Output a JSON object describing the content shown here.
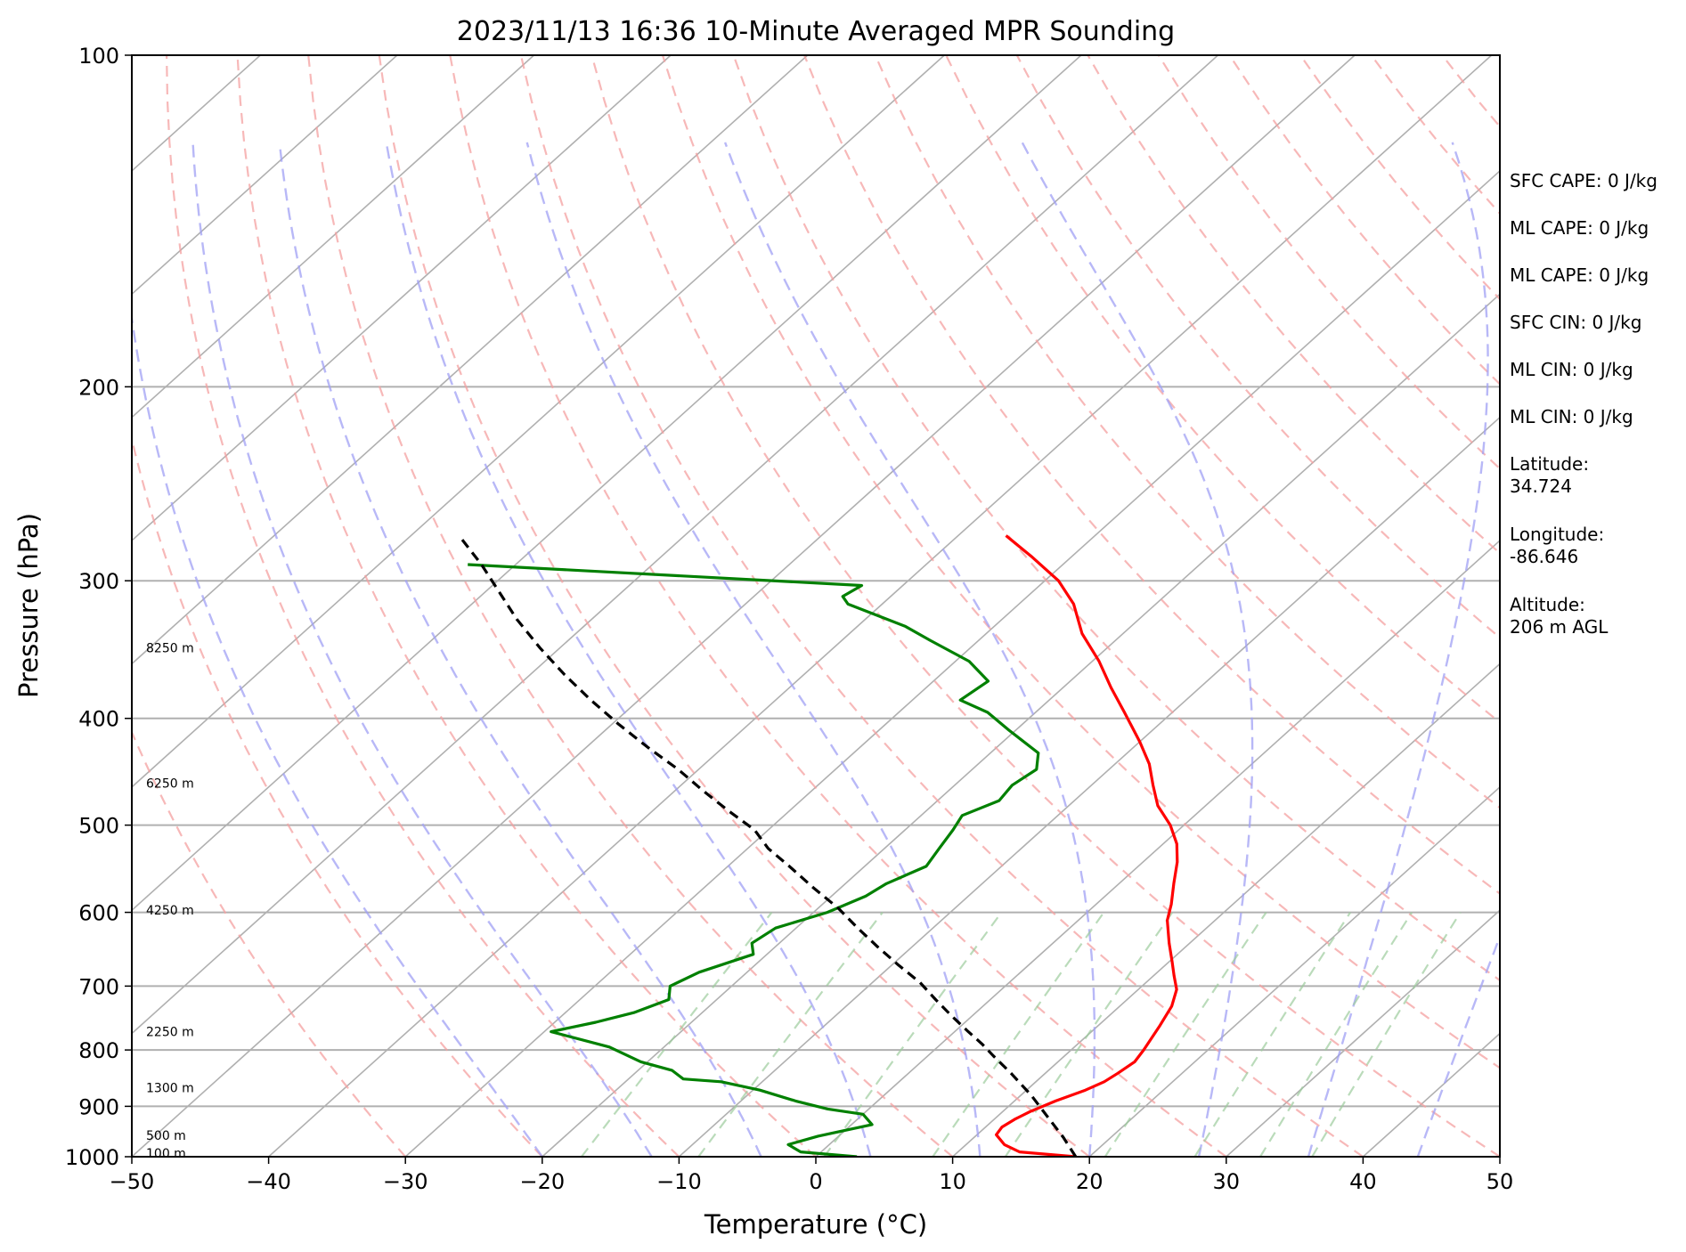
{
  "chart_data": {
    "type": "line",
    "title": "2023/11/13 16:36 10-Minute Averaged MPR Sounding",
    "xlabel": "Temperature (°C)",
    "ylabel": "Pressure (hPa)",
    "xlim": [
      -50,
      50
    ],
    "ylim": [
      1000,
      100
    ],
    "y_scale": "log",
    "x_ticks": [
      -50,
      -40,
      -30,
      -20,
      -10,
      0,
      10,
      20,
      30,
      40,
      50
    ],
    "y_ticks": [
      100,
      200,
      300,
      400,
      500,
      600,
      700,
      800,
      900,
      1000
    ],
    "grid": true,
    "skew": true,
    "series": [
      {
        "role": "temperature",
        "color": "#ff0000",
        "points": [
          [
            19.0,
            1000
          ],
          [
            14.5,
            990
          ],
          [
            12.8,
            975
          ],
          [
            11.4,
            955
          ],
          [
            11.2,
            940
          ],
          [
            11.5,
            925
          ],
          [
            12.0,
            910
          ],
          [
            13.0,
            890
          ],
          [
            14.3,
            870
          ],
          [
            15.0,
            855
          ],
          [
            15.3,
            840
          ],
          [
            15.6,
            820
          ],
          [
            15.3,
            800
          ],
          [
            14.5,
            760
          ],
          [
            13.8,
            730
          ],
          [
            12.8,
            705
          ],
          [
            11.5,
            685
          ],
          [
            10.2,
            665
          ],
          [
            8.5,
            640
          ],
          [
            6.5,
            610
          ],
          [
            5.5,
            590
          ],
          [
            4.0,
            565
          ],
          [
            2.5,
            540
          ],
          [
            1.0,
            520
          ],
          [
            -1.0,
            500
          ],
          [
            -3.5,
            480
          ],
          [
            -5.5,
            460
          ],
          [
            -7.5,
            440
          ],
          [
            -10.0,
            420
          ],
          [
            -13.5,
            395
          ],
          [
            -16.5,
            375
          ],
          [
            -19.5,
            355
          ],
          [
            -23.0,
            335
          ],
          [
            -26.0,
            315
          ],
          [
            -29.0,
            300
          ],
          [
            -33.0,
            285
          ],
          [
            -36.5,
            273
          ]
        ]
      },
      {
        "role": "dewpoint",
        "color": "#008000",
        "points": [
          [
            3.0,
            1000
          ],
          [
            -1.5,
            990
          ],
          [
            -3.0,
            975
          ],
          [
            -1.5,
            958
          ],
          [
            1.5,
            935
          ],
          [
            0.0,
            915
          ],
          [
            -3.0,
            905
          ],
          [
            -6.0,
            890
          ],
          [
            -9.5,
            870
          ],
          [
            -13.0,
            855
          ],
          [
            -16.0,
            850
          ],
          [
            -17.5,
            835
          ],
          [
            -20.5,
            820
          ],
          [
            -24.0,
            795
          ],
          [
            -29.5,
            770
          ],
          [
            -27.0,
            755
          ],
          [
            -25.0,
            740
          ],
          [
            -23.5,
            720
          ],
          [
            -24.5,
            700
          ],
          [
            -23.5,
            680
          ],
          [
            -21.0,
            655
          ],
          [
            -22.0,
            640
          ],
          [
            -21.5,
            620
          ],
          [
            -19.0,
            600
          ],
          [
            -17.5,
            580
          ],
          [
            -17.0,
            565
          ],
          [
            -15.5,
            545
          ],
          [
            -16.0,
            525
          ],
          [
            -16.5,
            505
          ],
          [
            -17.0,
            490
          ],
          [
            -15.5,
            475
          ],
          [
            -15.8,
            460
          ],
          [
            -15.3,
            445
          ],
          [
            -16.5,
            430
          ],
          [
            -20.5,
            410
          ],
          [
            -23.5,
            395
          ],
          [
            -26.5,
            385
          ],
          [
            -26.0,
            370
          ],
          [
            -29.0,
            355
          ],
          [
            -33.5,
            340
          ],
          [
            -36.5,
            330
          ],
          [
            -42.5,
            315
          ],
          [
            -43.5,
            310
          ],
          [
            -43.0,
            303
          ],
          [
            -73.5,
            290
          ]
        ]
      },
      {
        "role": "parcel",
        "color": "#000000",
        "dashed": true,
        "points": [
          [
            19.0,
            1000
          ],
          [
            16.5,
            960
          ],
          [
            13.7,
            920
          ],
          [
            10.8,
            880
          ],
          [
            7.5,
            840
          ],
          [
            4.8,
            810
          ],
          [
            3.0,
            790
          ],
          [
            1.0,
            770
          ],
          [
            -1.5,
            745
          ],
          [
            -4.0,
            720
          ],
          [
            -6.5,
            695
          ],
          [
            -9.5,
            670
          ],
          [
            -12.5,
            645
          ],
          [
            -15.5,
            620
          ],
          [
            -18.5,
            595
          ],
          [
            -22.0,
            570
          ],
          [
            -25.5,
            545
          ],
          [
            -28.5,
            525
          ],
          [
            -31.0,
            505
          ],
          [
            -34.5,
            485
          ],
          [
            -38.0,
            465
          ],
          [
            -41.5,
            445
          ],
          [
            -45.5,
            425
          ],
          [
            -49.5,
            405
          ],
          [
            -53.5,
            385
          ],
          [
            -57.5,
            365
          ],
          [
            -61.5,
            345
          ],
          [
            -65.5,
            325
          ],
          [
            -69.0,
            307
          ],
          [
            -72.5,
            290
          ],
          [
            -76.0,
            275
          ]
        ]
      }
    ],
    "height_labels": [
      {
        "text": "8250 m",
        "p": 345
      },
      {
        "text": "6250 m",
        "p": 458
      },
      {
        "text": "4250 m",
        "p": 597
      },
      {
        "text": "2250 m",
        "p": 770
      },
      {
        "text": "1300 m",
        "p": 866
      },
      {
        "text": "500 m",
        "p": 956
      },
      {
        "text": "100 m",
        "p": 993
      }
    ],
    "annotations": [
      "SFC CAPE: 0 J/kg",
      "ML CAPE: 0 J/kg",
      "ML CAPE: 0 J/kg",
      "SFC CIN: 0 J/kg",
      "ML CIN: 0 J/kg",
      "ML CIN: 0 J/kg",
      "Latitude:\n34.724",
      "Longitude:\n-86.646",
      "Altitude:\n206 m AGL"
    ]
  }
}
